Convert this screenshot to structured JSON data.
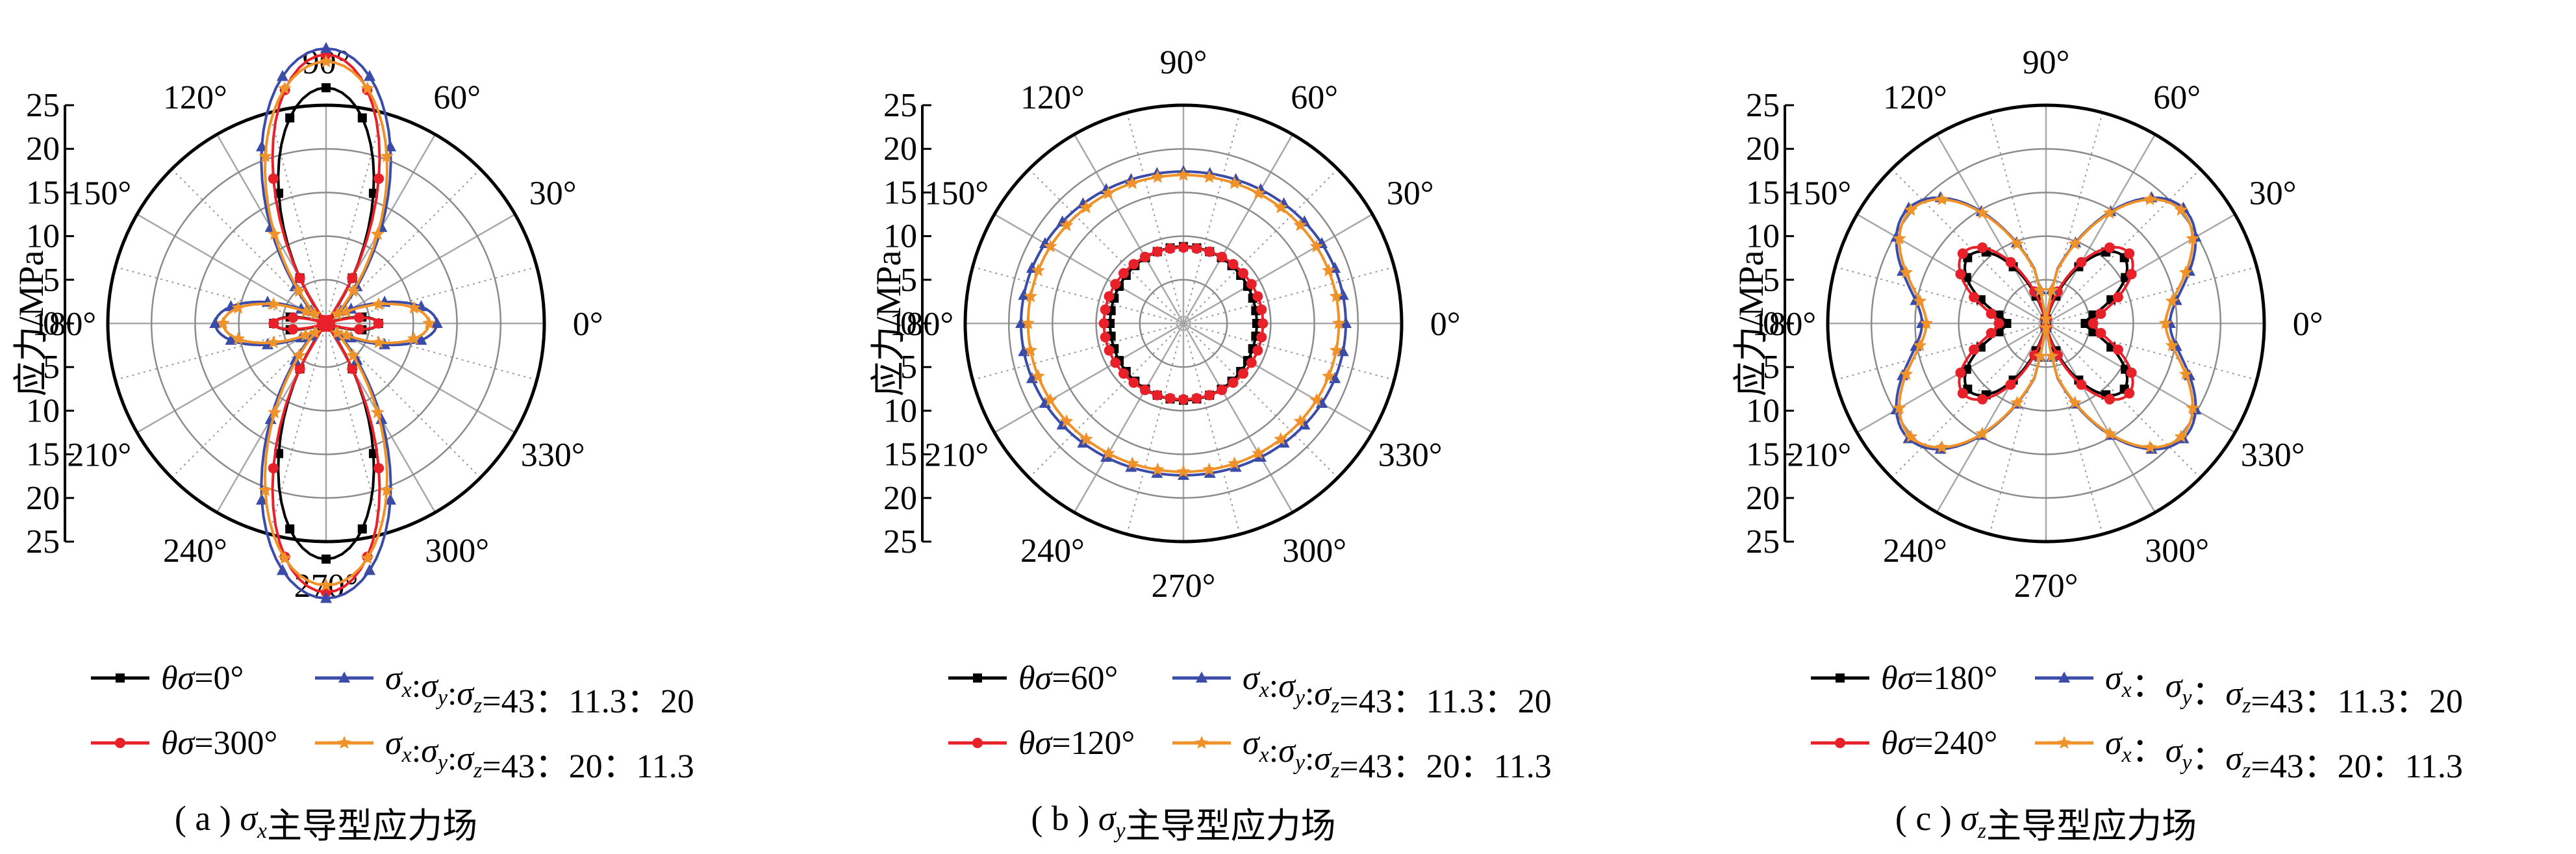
{
  "colors": {
    "black": "#000000",
    "red": "#e8202a",
    "blue": "#3b4ba8",
    "orange": "#f0922a",
    "grid_circle": "#8c8c8c",
    "grid_spoke": "#a8a8a8"
  },
  "chart_data": [
    {
      "type": "polar-line",
      "caption": "( a ) σx主导型应力场",
      "radial_axis": {
        "label": "应力/MPa",
        "range": [
          0,
          25
        ],
        "ticks": [
          "25",
          "20",
          "15",
          "10",
          "5",
          "0",
          "5",
          "10",
          "15",
          "20",
          "25"
        ]
      },
      "angular_ticks": [
        "0°",
        "30°",
        "60°",
        "90°",
        "120°",
        "150°",
        "180°",
        "210°",
        "240°",
        "270°",
        "300°",
        "330°"
      ],
      "legend": [
        "θσ=0°",
        "σx:σy:σz=43：11.3：20",
        "θσ=300°",
        "σx:σy:σz=43：20：11.3"
      ],
      "series": [
        {
          "name": "θσ=0°",
          "color": "black",
          "marker": "square",
          "a": 6,
          "b": -10.5,
          "c": 10.5
        },
        {
          "name": "θσ=300°",
          "color": "red",
          "marker": "circle",
          "a": 6,
          "b": -12.4,
          "c": 12.4
        },
        {
          "name": "σx:σy:σz=43：11.3：20",
          "color": "blue",
          "marker": "triangle",
          "a": 12.7,
          "b": -9.4,
          "c": 9.4
        },
        {
          "name": "σx:σy:σz=43：20：11.3",
          "color": "orange",
          "marker": "star",
          "a": 11.8,
          "b": -9.1,
          "c": 9.1
        }
      ]
    },
    {
      "type": "polar-line",
      "caption": "( b ) σy主导型应力场",
      "radial_axis": {
        "label": "应力/MPa",
        "range": [
          0,
          25
        ],
        "ticks": [
          "25",
          "20",
          "15",
          "10",
          "5",
          "0",
          "5",
          "10",
          "15",
          "20",
          "25"
        ]
      },
      "angular_ticks": [
        "0°",
        "30°",
        "60°",
        "90°",
        "120°",
        "150°",
        "180°",
        "210°",
        "240°",
        "270°",
        "300°",
        "330°"
      ],
      "legend": [
        "θσ=60°",
        "σx:σy:σz=43：11.3：20",
        "θσ=120°",
        "σx:σy:σz=43：20：11.3"
      ],
      "series": [
        {
          "name": "θσ=60°",
          "color": "black",
          "marker": "square",
          "a": 8.6,
          "b": -0.2,
          "c": 0
        },
        {
          "name": "θσ=120°",
          "color": "red",
          "marker": "circle",
          "a": 8.9,
          "b": 0.2,
          "c": 0
        },
        {
          "name": "σx:σy:σz=43：11.3：20",
          "color": "blue",
          "marker": "triangle",
          "a": 18.0,
          "b": 0.6,
          "c": 0
        },
        {
          "name": "σx:σy:σz=43：20：11.3",
          "color": "orange",
          "marker": "star",
          "a": 17.4,
          "b": 0.4,
          "c": 0
        }
      ]
    },
    {
      "type": "polar-line",
      "caption": "( c ) σz主导型应力场",
      "radial_axis": {
        "label": "应力/MPa",
        "range": [
          0,
          25
        ],
        "ticks": [
          "25",
          "20",
          "15",
          "10",
          "5",
          "0",
          "5",
          "10",
          "15",
          "20",
          "25"
        ]
      },
      "angular_ticks": [
        "0°",
        "30°",
        "60°",
        "90°",
        "120°",
        "150°",
        "180°",
        "210°",
        "240°",
        "270°",
        "300°",
        "330°"
      ],
      "legend": [
        "θσ=180°",
        "σx：σy：σz=43：11.3：20",
        "θσ=240°",
        "σx：σy：σz=43：20：11.3"
      ],
      "series": [
        {
          "name": "θσ=180°",
          "color": "black",
          "marker": "square",
          "a": 6.5,
          "b": 3.0,
          "c": -5.0,
          "dip": 7
        },
        {
          "name": "θσ=240°",
          "color": "red",
          "marker": "circle",
          "a": 7.2,
          "b": 3.2,
          "c": -5.0,
          "dip": 7
        },
        {
          "name": "σx：σy：σz=43：11.3：20",
          "color": "blue",
          "marker": "triangle",
          "a": 14.6,
          "b": 5.0,
          "c": -5.4,
          "dip": 11
        },
        {
          "name": "σx：σy：σz=43：20：11.3",
          "color": "orange",
          "marker": "star",
          "a": 14.3,
          "b": 4.8,
          "c": -5.4,
          "dip": 11
        }
      ]
    }
  ]
}
